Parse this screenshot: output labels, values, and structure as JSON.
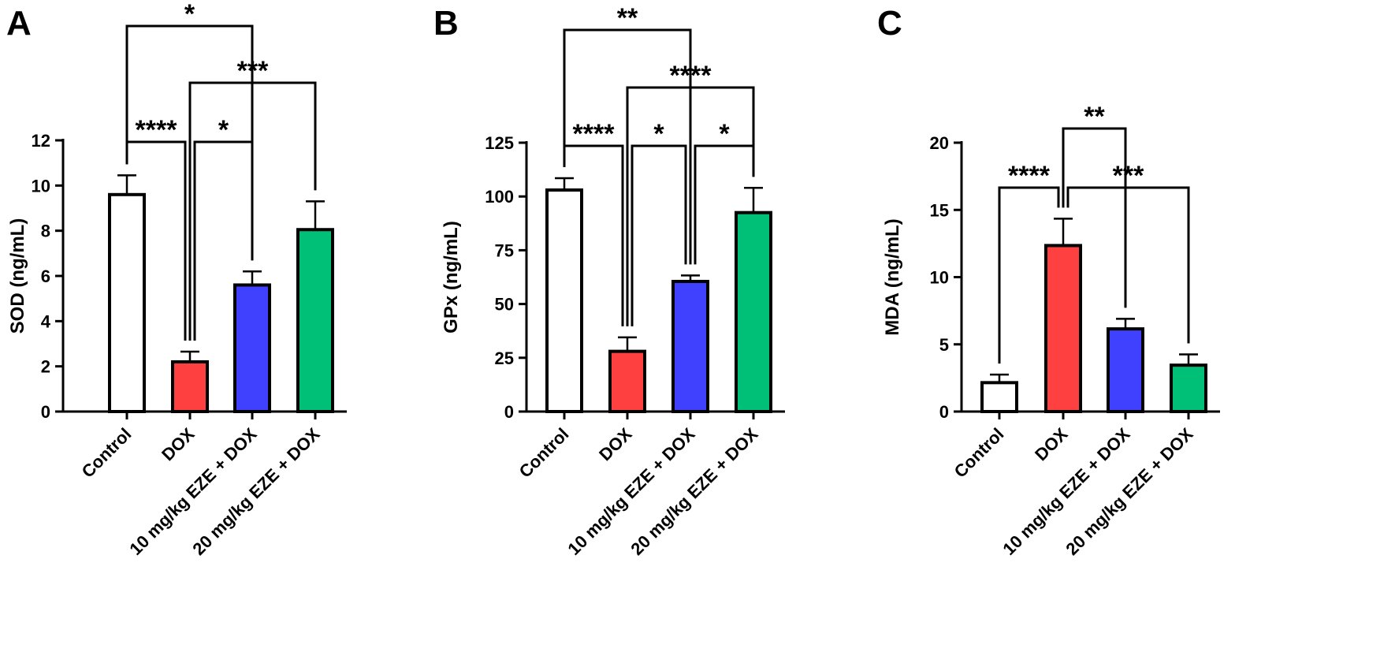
{
  "figure": {
    "categories": [
      "Control",
      "DOX",
      "10 mg/kg EZE + DOX",
      "20 mg/kg EZE + DOX"
    ],
    "colors": [
      "#ffffff",
      "#ff4040",
      "#4040ff",
      "#00c078"
    ]
  },
  "chart_data": [
    {
      "type": "bar",
      "panel": "A",
      "ylabel": "SOD (ng/mL)",
      "categories": [
        "Control",
        "DOX",
        "10 mg/kg EZE + DOX",
        "20 mg/kg EZE + DOX"
      ],
      "values": [
        9.6,
        2.2,
        5.6,
        8.05
      ],
      "errors": [
        0.85,
        0.45,
        0.6,
        1.25
      ],
      "ylim": [
        0,
        12
      ],
      "yticks": [
        0,
        2,
        4,
        6,
        8,
        10,
        12
      ],
      "grid": false,
      "significance": [
        {
          "groups": [
            0,
            1
          ],
          "label": "****",
          "level": 0
        },
        {
          "groups": [
            1,
            2
          ],
          "label": "*",
          "level": 0
        },
        {
          "groups": [
            1,
            3
          ],
          "label": "***",
          "level": 1
        },
        {
          "groups": [
            0,
            2
          ],
          "label": "*",
          "level": 2
        }
      ]
    },
    {
      "type": "bar",
      "panel": "B",
      "ylabel": "GPx (ng/mL)",
      "categories": [
        "Control",
        "DOX",
        "10 mg/kg EZE + DOX",
        "20 mg/kg EZE + DOX"
      ],
      "values": [
        103,
        28,
        60.5,
        92.5
      ],
      "errors": [
        5.5,
        6.5,
        2.8,
        11.5
      ],
      "ylim": [
        0,
        125
      ],
      "yticks": [
        0,
        25,
        50,
        75,
        100,
        125
      ],
      "grid": false,
      "significance": [
        {
          "groups": [
            0,
            1
          ],
          "label": "****",
          "level": 0
        },
        {
          "groups": [
            1,
            2
          ],
          "label": "*",
          "level": 0
        },
        {
          "groups": [
            2,
            3
          ],
          "label": "*",
          "level": 0
        },
        {
          "groups": [
            1,
            3
          ],
          "label": "****",
          "level": 1
        },
        {
          "groups": [
            0,
            2
          ],
          "label": "**",
          "level": 2
        }
      ]
    },
    {
      "type": "bar",
      "panel": "C",
      "ylabel": "MDA (ng/mL)",
      "categories": [
        "Control",
        "DOX",
        "10 mg/kg EZE + DOX",
        "20 mg/kg EZE + DOX"
      ],
      "values": [
        2.15,
        12.35,
        6.15,
        3.45
      ],
      "errors": [
        0.6,
        2.0,
        0.75,
        0.8
      ],
      "ylim": [
        0,
        20
      ],
      "yticks": [
        0,
        5,
        10,
        15,
        20
      ],
      "grid": false,
      "significance": [
        {
          "groups": [
            0,
            1
          ],
          "label": "****",
          "level": 0
        },
        {
          "groups": [
            1,
            3
          ],
          "label": "***",
          "level": 0
        },
        {
          "groups": [
            1,
            2
          ],
          "label": "**",
          "level": 1
        }
      ]
    }
  ]
}
